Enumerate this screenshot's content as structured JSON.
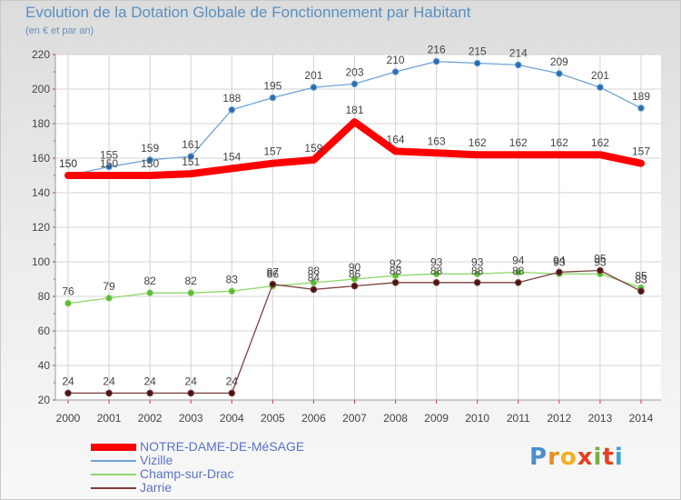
{
  "title": "Evolution de la Dotation Globale de Fonctionnement par Habitant",
  "subtitle": "(en € et par an)",
  "logo": [
    "P",
    "r",
    "o",
    "x",
    "i",
    "t",
    "i"
  ],
  "logo_colors": [
    "#4a8fd0",
    "#e89020",
    "#f0b020",
    "#e84020",
    "#70b040",
    "#e84020",
    "#40a0d0"
  ],
  "chart_data": {
    "type": "line",
    "title": "Evolution de la Dotation Globale de Fonctionnement par Habitant",
    "subtitle": "(en € et par an)",
    "xlabel": "",
    "ylabel": "",
    "x": [
      "2000",
      "2001",
      "2002",
      "2003",
      "2004",
      "2005",
      "2006",
      "2007",
      "2008",
      "2009",
      "2010",
      "2011",
      "2012",
      "2013",
      "2014"
    ],
    "ylim": [
      20,
      220
    ],
    "yticks": [
      20,
      40,
      60,
      80,
      100,
      120,
      140,
      160,
      180,
      200,
      220
    ],
    "grid": true,
    "legend_position": "bottom-left",
    "series": [
      {
        "name": "NOTRE-DAME-DE-MéSAGE",
        "color": "#ff0000",
        "values": [
          150,
          150,
          150,
          151,
          154,
          157,
          159,
          181,
          164,
          163,
          162,
          162,
          162,
          162,
          157
        ]
      },
      {
        "name": "Vizille",
        "color": "#6ea2d6",
        "values": [
          150,
          155,
          159,
          161,
          188,
          195,
          201,
          203,
          210,
          216,
          215,
          214,
          209,
          201,
          189
        ]
      },
      {
        "name": "Champ-sur-Drac",
        "color": "#8fd86b",
        "values": [
          76,
          79,
          82,
          82,
          83,
          86,
          88,
          90,
          92,
          93,
          93,
          94,
          93,
          93,
          85
        ]
      },
      {
        "name": "Jarrie",
        "color": "#7b3f3f",
        "values": [
          24,
          24,
          24,
          24,
          24,
          87,
          84,
          86,
          88,
          88,
          88,
          88,
          94,
          95,
          83
        ]
      }
    ]
  }
}
